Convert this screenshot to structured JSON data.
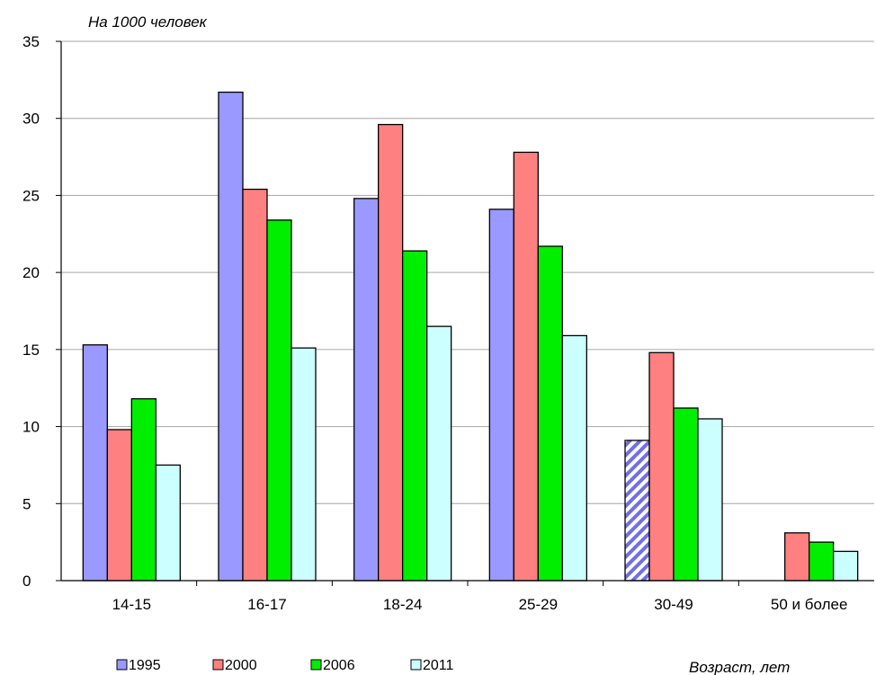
{
  "chart_data": {
    "type": "bar",
    "y_unit_label": "На 1000 человек",
    "x_axis_label": "Возраст, лет",
    "categories": [
      "14-15",
      "16-17",
      "18-24",
      "25-29",
      "30-49",
      "50 и более"
    ],
    "ylim": [
      0,
      35
    ],
    "yticks": [
      "0",
      "5",
      "10",
      "15",
      "20",
      "25",
      "30",
      "35"
    ],
    "grid": true,
    "legend_position": "bottom-left",
    "series": [
      {
        "name": "1995",
        "color": "#9999FF",
        "values": [
          15.3,
          31.7,
          24.8,
          24.1,
          9.1,
          null
        ],
        "hatched_index": 4
      },
      {
        "name": "2000",
        "color": "#FF8080",
        "values": [
          9.8,
          25.4,
          29.6,
          27.8,
          14.8,
          3.1
        ]
      },
      {
        "name": "2006",
        "color": "#00EE00",
        "values": [
          11.8,
          23.4,
          21.4,
          21.7,
          11.2,
          2.5
        ]
      },
      {
        "name": "2011",
        "color": "#CCFFFF",
        "values": [
          7.5,
          15.1,
          16.5,
          15.9,
          10.5,
          1.9
        ]
      }
    ]
  }
}
